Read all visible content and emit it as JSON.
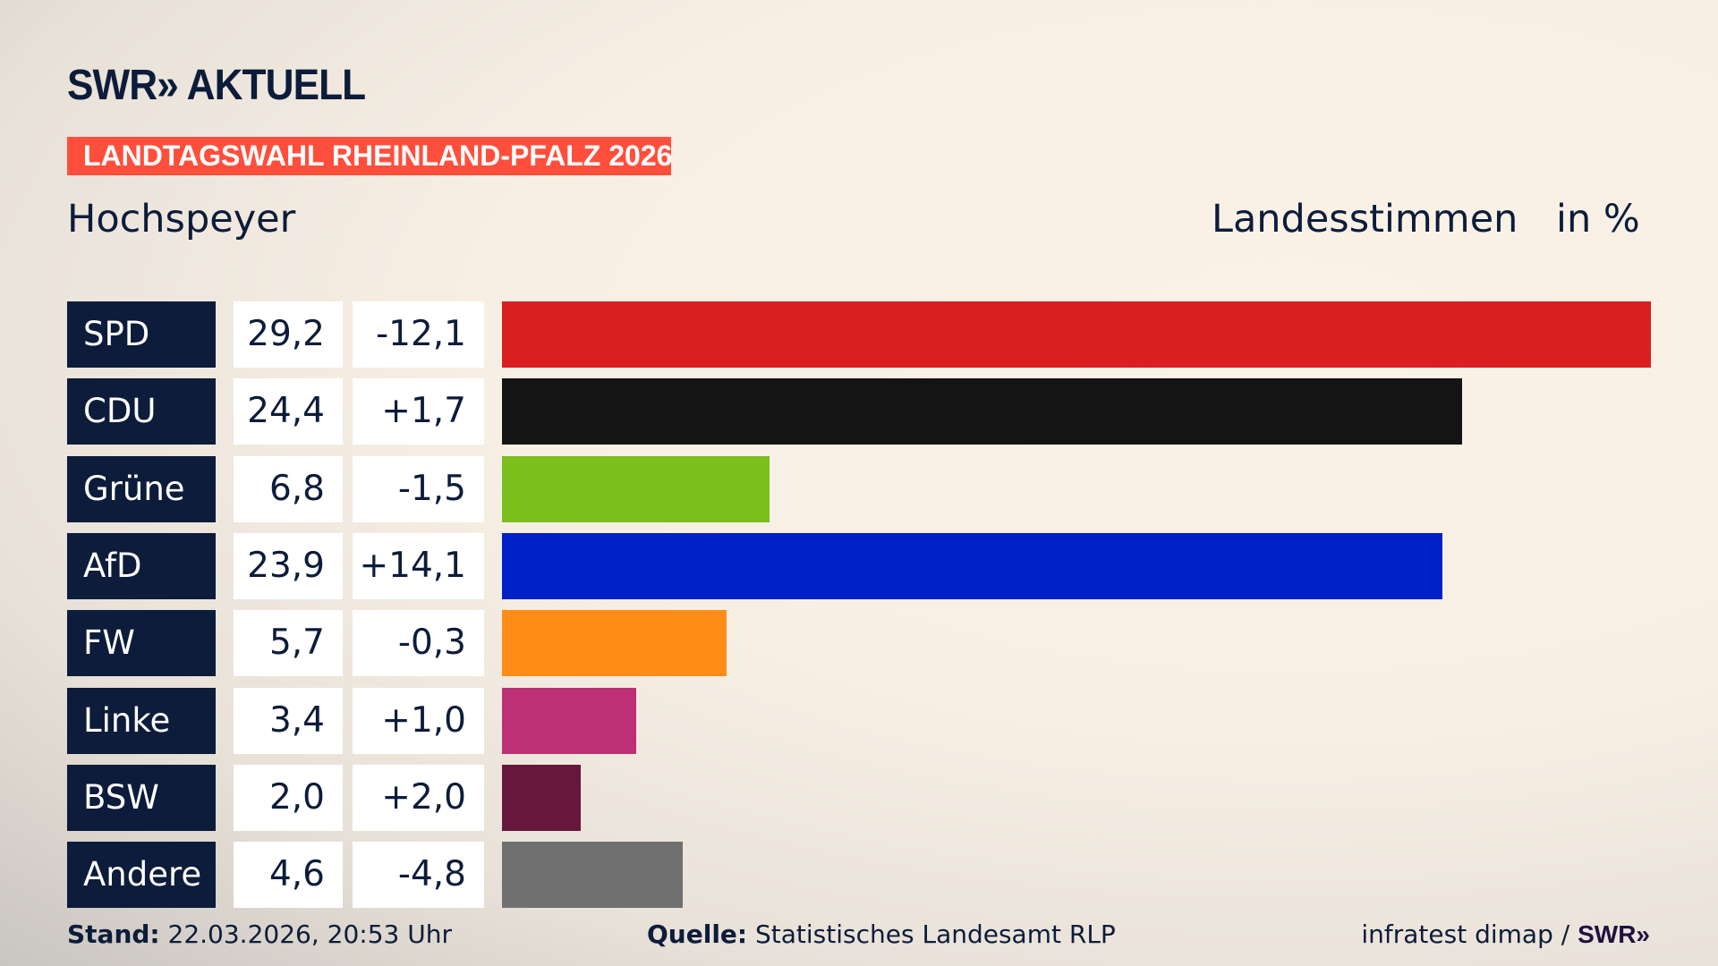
{
  "header": {
    "logo": "SWR» AKTUELL",
    "banner": "LANDTAGSWAHL RHEINLAND-PFALZ 2026",
    "place": "Hochspeyer",
    "measure": "Landesstimmen",
    "unit": "in %"
  },
  "chart_data": {
    "type": "bar",
    "orientation": "horizontal",
    "categories": [
      "SPD",
      "CDU",
      "Grüne",
      "AfD",
      "FW",
      "Linke",
      "BSW",
      "Andere"
    ],
    "values": [
      29.2,
      24.4,
      6.8,
      23.9,
      5.7,
      3.4,
      2.0,
      4.6
    ],
    "value_labels": [
      "29,2",
      "24,4",
      "6,8",
      "23,9",
      "5,7",
      "3,4",
      "2,0",
      "4,6"
    ],
    "diff_labels": [
      "-12,1",
      "+1,7",
      "-1,5",
      "+14,1",
      "-0,3",
      "+1,0",
      "+2,0",
      "-4,8"
    ],
    "diffs": [
      -12.1,
      1.7,
      -1.5,
      14.1,
      -0.3,
      1.0,
      2.0,
      -4.8
    ],
    "colors": [
      "#d91f1f",
      "#141414",
      "#7abf1c",
      "#0021c8",
      "#ff8c17",
      "#bd3075",
      "#66173d",
      "#707070"
    ],
    "xlim": [
      0,
      29.2
    ],
    "grid": false
  },
  "footer": {
    "stand_label": "Stand:",
    "stand_value": " 22.03.2026, 20:53 Uhr",
    "source_label": "Quelle:",
    "source_value": " Statistisches Landesamt RLP",
    "credit": "infratest dimap / ",
    "credit_logo": "SWR»"
  }
}
